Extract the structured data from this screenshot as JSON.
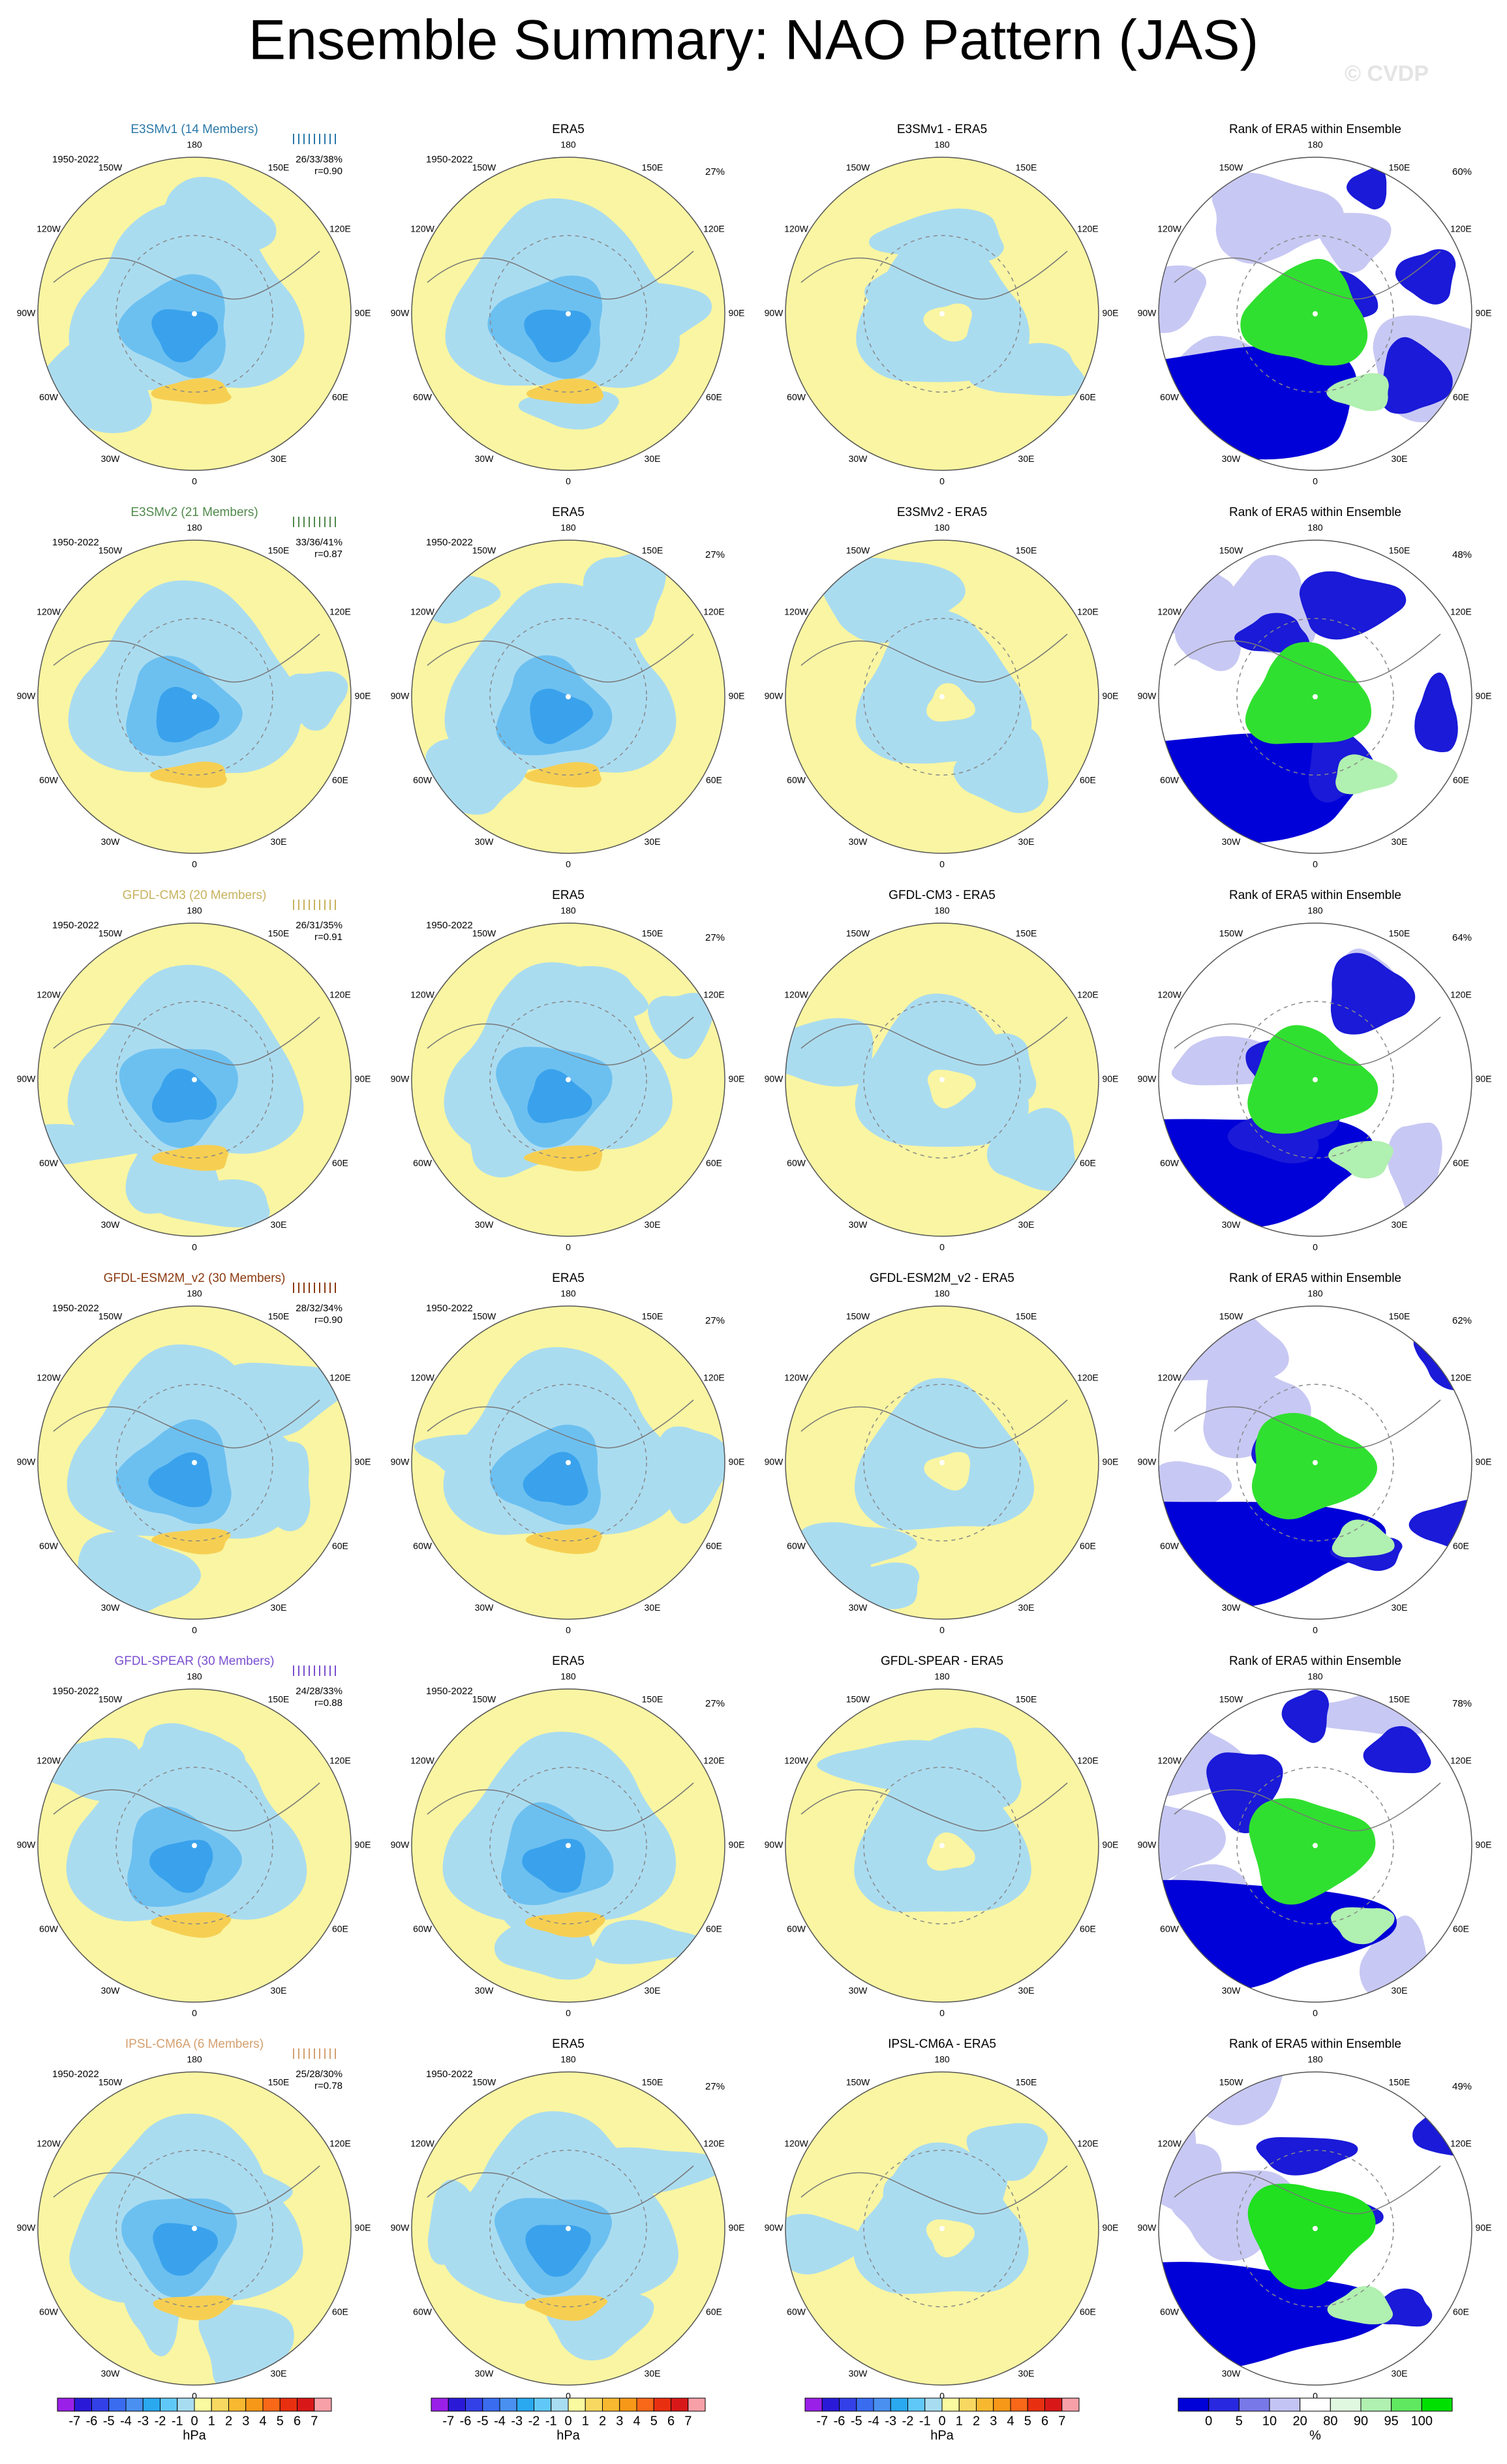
{
  "title": "Ensemble Summary: NAO Pattern (JAS)",
  "watermark": "© CVDP",
  "lon_labels": [
    "0",
    "30E",
    "60E",
    "90E",
    "120E",
    "150E",
    "180",
    "150W",
    "120W",
    "90W",
    "60W",
    "30W"
  ],
  "rows": [
    {
      "model_title": "E3SMv1 (14 Members)",
      "model_color": "#2a78a8",
      "period": "1950-2022",
      "spread": "26/33/38%",
      "corr": "r=0.90",
      "obs_title": "ERA5",
      "obs_period": "1950-2022",
      "obs_pct": "27%",
      "diff_title": "E3SMv1 - ERA5",
      "rank_title": "Rank of ERA5 within Ensemble",
      "rank_pct": "60%"
    },
    {
      "model_title": "E3SMv2 (21 Members)",
      "model_color": "#4f8a4a",
      "period": "1950-2022",
      "spread": "33/36/41%",
      "corr": "r=0.87",
      "obs_title": "ERA5",
      "obs_period": "1950-2022",
      "obs_pct": "27%",
      "diff_title": "E3SMv2 - ERA5",
      "rank_title": "Rank of ERA5 within Ensemble",
      "rank_pct": "48%"
    },
    {
      "model_title": "GFDL-CM3 (20 Members)",
      "model_color": "#c8b25e",
      "period": "1950-2022",
      "spread": "26/31/35%",
      "corr": "r=0.91",
      "obs_title": "ERA5",
      "obs_period": "1950-2022",
      "obs_pct": "27%",
      "diff_title": "GFDL-CM3 - ERA5",
      "rank_title": "Rank of ERA5 within Ensemble",
      "rank_pct": "64%"
    },
    {
      "model_title": "GFDL-ESM2M_v2 (30 Members)",
      "model_color": "#8b3a10",
      "period": "1950-2022",
      "spread": "28/32/34%",
      "corr": "r=0.90",
      "obs_title": "ERA5",
      "obs_period": "1950-2022",
      "obs_pct": "27%",
      "diff_title": "GFDL-ESM2M_v2 - ERA5",
      "rank_title": "Rank of ERA5 within Ensemble",
      "rank_pct": "62%"
    },
    {
      "model_title": "GFDL-SPEAR (30 Members)",
      "model_color": "#7a4fd0",
      "period": "1950-2022",
      "spread": "24/28/33%",
      "corr": "r=0.88",
      "obs_title": "ERA5",
      "obs_period": "1950-2022",
      "obs_pct": "27%",
      "diff_title": "GFDL-SPEAR - ERA5",
      "rank_title": "Rank of ERA5 within Ensemble",
      "rank_pct": "78%"
    },
    {
      "model_title": "IPSL-CM6A (6 Members)",
      "model_color": "#d4a070",
      "period": "1950-2022",
      "spread": "25/28/30%",
      "corr": "r=0.78",
      "obs_title": "ERA5",
      "obs_period": "1950-2022",
      "obs_pct": "27%",
      "diff_title": "IPSL-CM6A - ERA5",
      "rank_title": "Rank of ERA5 within Ensemble",
      "rank_pct": "49%"
    }
  ],
  "colorbar": {
    "ticks": [
      -7,
      -6,
      -5,
      -4,
      -3,
      -2,
      -1,
      0,
      1,
      2,
      3,
      4,
      5,
      6,
      7
    ],
    "colors": [
      "#9a20e8",
      "#2a1ad8",
      "#3340e8",
      "#3a6cf0",
      "#4a90f0",
      "#2aa8f0",
      "#60c8f8",
      "#a8dcf0",
      "#fafaa0",
      "#f8d860",
      "#f8b830",
      "#f89818",
      "#f86818",
      "#e83010",
      "#d81818",
      "#f8a0a8"
    ],
    "units": "hPa"
  },
  "rank_colorbar": {
    "ticks": [
      0,
      5,
      10,
      20,
      80,
      90,
      95,
      100
    ],
    "colors": [
      "#0000d8",
      "#2828e0",
      "#7878e8",
      "#c4c4f4",
      "#ffffff",
      "#e0f8e0",
      "#b0f0b0",
      "#60e860",
      "#00e000"
    ],
    "units": "%"
  }
}
